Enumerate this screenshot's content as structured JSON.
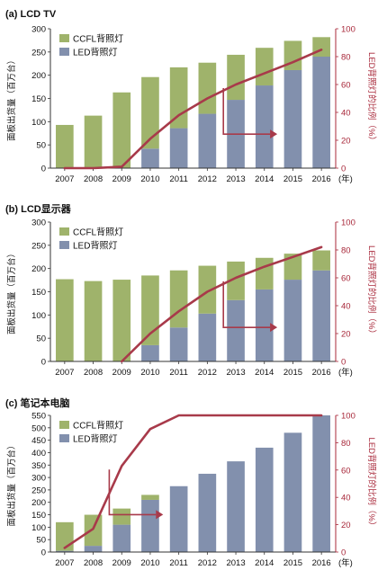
{
  "colors": {
    "ccfl": "#9fb36b",
    "led": "#8290ad",
    "ratio_line": "#a83a4a",
    "axis_left": "#333333",
    "axis_right": "#a8283a"
  },
  "legend": {
    "ccfl": "CCFL背照灯",
    "led": "LED背照灯"
  },
  "axis_labels": {
    "left": "面板出货量（百万台）",
    "right": "LED背照灯的比例（%）",
    "year_unit": "(年)"
  },
  "chart_data": [
    {
      "type": "bar",
      "title": "(a) LCD TV",
      "categories": [
        "2007",
        "2008",
        "2009",
        "2010",
        "2011",
        "2012",
        "2013",
        "2014",
        "2015",
        "2016"
      ],
      "stacked": true,
      "series": [
        {
          "name": "CCFL背照灯",
          "values": [
            93,
            113,
            163,
            154,
            131,
            110,
            97,
            81,
            63,
            42
          ]
        },
        {
          "name": "LED背照灯",
          "values": [
            0,
            0,
            0,
            42,
            86,
            117,
            147,
            178,
            211,
            240
          ]
        }
      ],
      "totals": [
        93,
        113,
        163,
        196,
        217,
        227,
        244,
        259,
        274,
        282
      ],
      "ratio_series": {
        "name": "LED背照灯的比例",
        "values": [
          0,
          0,
          1,
          21,
          38,
          50,
          60,
          68,
          76,
          85
        ]
      },
      "ylim_left": [
        0,
        300
      ],
      "yticks_left": [
        "0",
        "50",
        "100",
        "150",
        "200",
        "250",
        "300"
      ],
      "ylim_right": [
        0,
        100
      ],
      "yticks_right": [
        "0",
        "20",
        "40",
        "60",
        "80",
        "100"
      ],
      "ratio_start_index": 0,
      "arrow": {
        "from_year_index": 6,
        "to_year_index": 7
      }
    },
    {
      "type": "bar",
      "title": "(b) LCD显示器",
      "categories": [
        "2007",
        "2008",
        "2009",
        "2010",
        "2011",
        "2012",
        "2013",
        "2014",
        "2015",
        "2016"
      ],
      "stacked": true,
      "series": [
        {
          "name": "CCFL背照灯",
          "values": [
            177,
            173,
            176,
            150,
            123,
            103,
            83,
            68,
            56,
            43
          ]
        },
        {
          "name": "LED背照灯",
          "values": [
            0,
            0,
            0,
            35,
            73,
            103,
            132,
            155,
            176,
            196
          ]
        }
      ],
      "totals": [
        177,
        173,
        176,
        185,
        196,
        206,
        215,
        223,
        232,
        239
      ],
      "ratio_series": {
        "name": "LED背照灯的比例",
        "values": [
          0,
          0,
          0,
          20,
          36,
          50,
          60,
          68,
          75,
          82
        ]
      },
      "ylim_left": [
        0,
        300
      ],
      "yticks_left": [
        "0",
        "50",
        "100",
        "150",
        "200",
        "250",
        "300"
      ],
      "ylim_right": [
        0,
        100
      ],
      "yticks_right": [
        "0",
        "20",
        "40",
        "60",
        "80",
        "100"
      ],
      "ratio_start_index": 2,
      "arrow": {
        "from_year_index": 6,
        "to_year_index": 7
      }
    },
    {
      "type": "bar",
      "title": "(c) 笔记本电脑",
      "categories": [
        "2007",
        "2008",
        "2009",
        "2010",
        "2011",
        "2012",
        "2013",
        "2014",
        "2015",
        "2016"
      ],
      "stacked": true,
      "series": [
        {
          "name": "CCFL背照灯",
          "values": [
            115,
            125,
            65,
            20,
            0,
            0,
            0,
            0,
            0,
            0
          ]
        },
        {
          "name": "LED背照灯",
          "values": [
            5,
            25,
            110,
            210,
            265,
            315,
            365,
            420,
            480,
            550
          ]
        }
      ],
      "totals": [
        120,
        150,
        175,
        230,
        265,
        315,
        365,
        420,
        480,
        550
      ],
      "ratio_series": {
        "name": "LED背照灯的比例",
        "values": [
          3,
          17,
          63,
          90,
          100,
          100,
          100,
          100,
          100,
          100
        ]
      },
      "ylim_left": [
        0,
        550
      ],
      "yticks_left": [
        "0",
        "50",
        "100",
        "150",
        "200",
        "250",
        "300",
        "350",
        "400",
        "450",
        "500",
        "550"
      ],
      "ylim_right": [
        0,
        100
      ],
      "yticks_right": [
        "0",
        "20",
        "40",
        "60",
        "80",
        "100"
      ],
      "ratio_start_index": 0,
      "arrow": {
        "from_year_index": 2,
        "to_year_index": 3
      }
    }
  ]
}
